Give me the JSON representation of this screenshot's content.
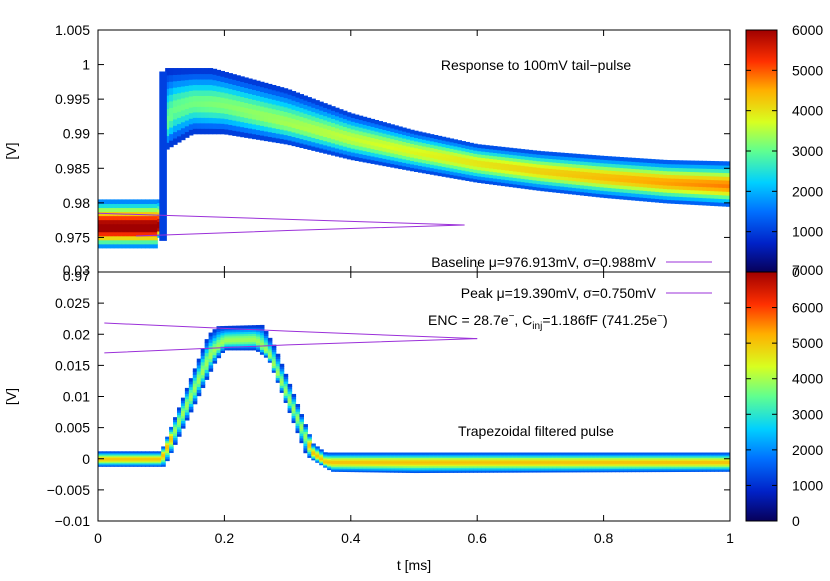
{
  "chart_data": [
    {
      "type": "heatmap",
      "title": "Response to 100mV tail−pulse",
      "xlabel": "",
      "ylabel": "[V]",
      "xlim": [
        0,
        1
      ],
      "ylim": [
        0.97,
        1.005
      ],
      "x_ticks": [],
      "y_ticks": [
        0.97,
        0.975,
        0.98,
        0.985,
        0.99,
        0.995,
        1.0,
        1.005
      ],
      "y_tick_labels": [
        "0.97",
        "0.975",
        "0.98",
        "0.985",
        "0.99",
        "0.995",
        "1",
        "1.005"
      ],
      "colorbar": {
        "range": [
          0,
          6000
        ],
        "ticks": [
          0,
          1000,
          2000,
          3000,
          4000,
          5000,
          6000
        ]
      },
      "band_center": [
        [
          0,
          0.9765
        ],
        [
          0.098,
          0.9765
        ],
        [
          0.103,
          0.9905
        ],
        [
          0.12,
          0.9935
        ],
        [
          0.15,
          0.9945
        ],
        [
          0.2,
          0.9942
        ],
        [
          0.3,
          0.9915
        ],
        [
          0.4,
          0.9893
        ],
        [
          0.5,
          0.9874
        ],
        [
          0.6,
          0.9858
        ],
        [
          0.7,
          0.9846
        ],
        [
          0.8,
          0.9837
        ],
        [
          0.9,
          0.983
        ],
        [
          1.0,
          0.9825
        ]
      ],
      "band_upper": [
        [
          0,
          0.9805
        ],
        [
          0.1,
          0.9805
        ],
        [
          0.108,
          0.9995
        ],
        [
          0.18,
          0.9995
        ],
        [
          0.3,
          0.9965
        ],
        [
          0.4,
          0.993
        ],
        [
          0.5,
          0.9905
        ],
        [
          0.6,
          0.9885
        ],
        [
          0.7,
          0.9875
        ],
        [
          0.8,
          0.9868
        ],
        [
          0.9,
          0.9862
        ],
        [
          1.0,
          0.986
        ]
      ],
      "band_lower": [
        [
          0,
          0.9735
        ],
        [
          0.096,
          0.9735
        ],
        [
          0.104,
          0.9875
        ],
        [
          0.15,
          0.99
        ],
        [
          0.2,
          0.99
        ],
        [
          0.3,
          0.9885
        ],
        [
          0.4,
          0.9863
        ],
        [
          0.5,
          0.9846
        ],
        [
          0.6,
          0.983
        ],
        [
          0.7,
          0.9818
        ],
        [
          0.8,
          0.9808
        ],
        [
          0.9,
          0.98
        ],
        [
          1.0,
          0.9795
        ]
      ],
      "stat_lines": [
        [
          [
            0,
            0.9785
          ],
          [
            0.1,
            0.9782
          ],
          [
            0.58,
            0.9768
          ]
        ],
        [
          [
            0.06,
            0.9752
          ],
          [
            0.3,
            0.976
          ],
          [
            0.58,
            0.9768
          ]
        ]
      ],
      "legend": {
        "label": "Baseline μ=976.913mV, σ=0.988mV",
        "color": "#9b30d9",
        "position": "bottom-right"
      }
    },
    {
      "type": "heatmap",
      "title": "Trapezoidal filtered pulse",
      "xlabel": "t [ms]",
      "ylabel": "[V]",
      "xlim": [
        0,
        1
      ],
      "ylim": [
        -0.01,
        0.03
      ],
      "x_ticks": [
        0,
        0.2,
        0.4,
        0.6,
        0.8,
        1
      ],
      "x_tick_labels": [
        "0",
        "0.2",
        "0.4",
        "0.6",
        "0.8",
        "1"
      ],
      "y_ticks": [
        -0.01,
        -0.005,
        0,
        0.005,
        0.01,
        0.015,
        0.02,
        0.025,
        0.03
      ],
      "y_tick_labels": [
        "−0.01",
        "−0.005",
        "0",
        "0.005",
        "0.01",
        "0.015",
        "0.02",
        "0.025",
        "0.03"
      ],
      "colorbar": {
        "range": [
          0,
          7000
        ],
        "ticks": [
          0,
          1000,
          2000,
          3000,
          4000,
          5000,
          6000,
          7000
        ]
      },
      "band_center": [
        [
          0,
          0.0
        ],
        [
          0.1,
          0.0
        ],
        [
          0.18,
          0.017
        ],
        [
          0.2,
          0.019
        ],
        [
          0.25,
          0.0192
        ],
        [
          0.27,
          0.017
        ],
        [
          0.34,
          0.001
        ],
        [
          0.36,
          -0.0005
        ],
        [
          0.5,
          -0.0005
        ],
        [
          0.8,
          -0.0005
        ],
        [
          1.0,
          -0.0005
        ]
      ],
      "band_upper": [
        [
          0,
          0.0012
        ],
        [
          0.1,
          0.0012
        ],
        [
          0.175,
          0.02
        ],
        [
          0.19,
          0.0213
        ],
        [
          0.26,
          0.0215
        ],
        [
          0.28,
          0.018
        ],
        [
          0.34,
          0.0025
        ],
        [
          0.36,
          0.001
        ],
        [
          1.0,
          0.001
        ]
      ],
      "band_lower": [
        [
          0,
          -0.0012
        ],
        [
          0.105,
          -0.0012
        ],
        [
          0.185,
          0.0155
        ],
        [
          0.2,
          0.0175
        ],
        [
          0.25,
          0.0175
        ],
        [
          0.27,
          0.016
        ],
        [
          0.33,
          0.0005
        ],
        [
          0.37,
          -0.002
        ],
        [
          0.5,
          -0.0022
        ],
        [
          1.0,
          -0.002
        ]
      ],
      "stat_lines": [
        [
          [
            0.01,
            0.0218
          ],
          [
            0.3,
            0.0205
          ],
          [
            0.6,
            0.0193
          ]
        ],
        [
          [
            0.01,
            0.017
          ],
          [
            0.3,
            0.0183
          ],
          [
            0.6,
            0.0193
          ]
        ]
      ],
      "legend": {
        "label": "Peak μ=19.390mV, σ=0.750mV",
        "color": "#9b30d9",
        "position": "top-right"
      },
      "annotation": {
        "prefix": "ENC = 28.7e",
        "sup1": "−",
        "mid": ", C",
        "sub": "inj",
        "suffix": "=1.186fF (741.25e",
        "sup2": "−",
        "end": ")"
      }
    }
  ]
}
